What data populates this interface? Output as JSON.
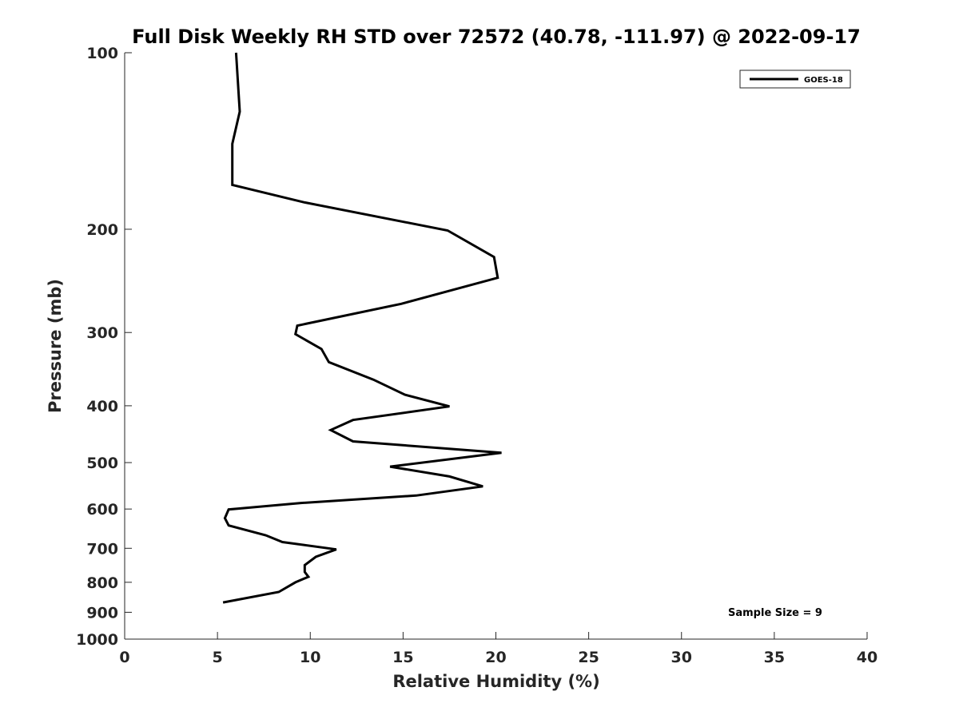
{
  "chart_data": {
    "type": "line",
    "title": "Full Disk Weekly RH STD over 72572 (40.78, -111.97) @ 2022-09-17",
    "xlabel": "Relative Humidity (%)",
    "ylabel": "Pressure (mb)",
    "xlim": [
      0,
      40
    ],
    "ylim": [
      100,
      1000
    ],
    "y_scale": "log",
    "y_reversed": true,
    "x_ticks": [
      0,
      5,
      10,
      15,
      20,
      25,
      30,
      35,
      40
    ],
    "y_ticks": [
      100,
      200,
      300,
      400,
      500,
      600,
      700,
      800,
      900,
      1000
    ],
    "grid": false,
    "legend_position": "top-right",
    "series": [
      {
        "name": "GOES-18",
        "color": "#000000",
        "points": [
          [
            6.0,
            100
          ],
          [
            6.2,
            126
          ],
          [
            5.8,
            143
          ],
          [
            5.8,
            168
          ],
          [
            9.7,
            180
          ],
          [
            17.4,
            201
          ],
          [
            19.9,
            223
          ],
          [
            20.1,
            242
          ],
          [
            14.9,
            268
          ],
          [
            9.3,
            292
          ],
          [
            9.2,
            302
          ],
          [
            10.6,
            320
          ],
          [
            11.0,
            337
          ],
          [
            13.4,
            361
          ],
          [
            15.1,
            383
          ],
          [
            17.5,
            401
          ],
          [
            12.3,
            423
          ],
          [
            11.1,
            440
          ],
          [
            12.3,
            460
          ],
          [
            20.3,
            481
          ],
          [
            14.3,
            508
          ],
          [
            17.5,
            528
          ],
          [
            19.3,
            549
          ],
          [
            15.7,
            569
          ],
          [
            9.5,
            586
          ],
          [
            5.6,
            601
          ],
          [
            5.4,
            622
          ],
          [
            5.6,
            640
          ],
          [
            7.6,
            665
          ],
          [
            8.5,
            683
          ],
          [
            11.4,
            703
          ],
          [
            10.3,
            724
          ],
          [
            9.7,
            748
          ],
          [
            9.7,
            768
          ],
          [
            9.9,
            783
          ],
          [
            9.2,
            800
          ],
          [
            8.3,
            831
          ],
          [
            5.3,
            866
          ]
        ]
      }
    ],
    "annotations": [
      "Sample Size = 9"
    ]
  }
}
